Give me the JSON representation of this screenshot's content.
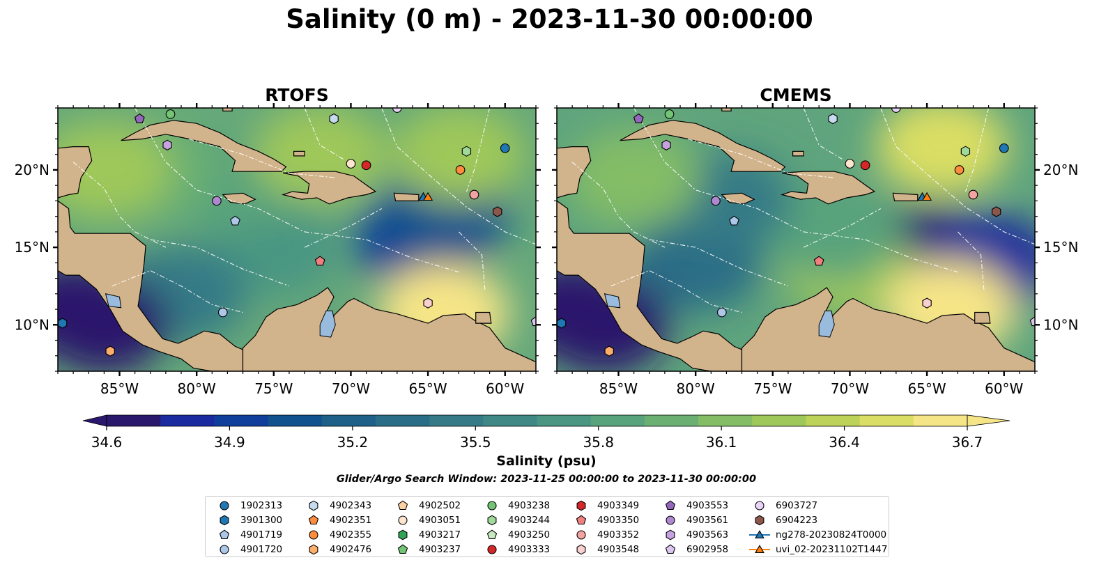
{
  "figure": {
    "title": "Salinity (0 m) - 2023-11-30 00:00:00",
    "search_window": "Glider/Argo Search Window: 2023-11-25 00:00:00 to 2023-11-30 00:00:00"
  },
  "colors": {
    "land": "#d2b48c",
    "lake": "#99bbdd",
    "colormap_haline": [
      "#2a186c",
      "#1b2a9e",
      "#0f3f9a",
      "#10518e",
      "#1e6088",
      "#2a6d86",
      "#357a86",
      "#3f8885",
      "#4a9682",
      "#58a37c",
      "#6bb072",
      "#84bd66",
      "#9fc85a",
      "#bdd258",
      "#dade64",
      "#f6e587"
    ]
  },
  "chart_data": [
    {
      "type": "heatmap",
      "title": "RTOFS",
      "variable": "Salinity (0 m)",
      "units": "psu",
      "x_range": [
        -89,
        -58
      ],
      "y_range": [
        7,
        24
      ],
      "x_ticks": [
        "85°W",
        "80°W",
        "75°W",
        "70°W",
        "65°W",
        "60°W"
      ],
      "y_ticks": [
        "10°N",
        "15°N",
        "20°N"
      ],
      "color_range": [
        34.6,
        36.7
      ],
      "regions": [
        {
          "lon": -65.5,
          "lat": 15.5,
          "value": 34.9
        },
        {
          "lon": -64,
          "lat": 17.2,
          "value": 35.0
        },
        {
          "lon": -75,
          "lat": 15,
          "value": 35.7
        },
        {
          "lon": -81,
          "lat": 12,
          "value": 35.5
        },
        {
          "lon": -78,
          "lat": 19,
          "value": 35.9
        },
        {
          "lon": -83,
          "lat": 20,
          "value": 36.0
        },
        {
          "lon": -86,
          "lat": 20,
          "value": 36.2
        },
        {
          "lon": -72,
          "lat": 21,
          "value": 36.3
        },
        {
          "lon": -63,
          "lat": 21,
          "value": 36.2
        },
        {
          "lon": -64,
          "lat": 10.8,
          "value": 36.7
        },
        {
          "lon": -86,
          "lat": 10,
          "value": 34.5
        },
        {
          "lon": -88,
          "lat": 11,
          "value": 34.5
        }
      ]
    },
    {
      "type": "heatmap",
      "title": "CMEMS",
      "variable": "Salinity (0 m)",
      "units": "psu",
      "x_range": [
        -89,
        -58
      ],
      "y_range": [
        7,
        24
      ],
      "x_ticks": [
        "85°W",
        "80°W",
        "75°W",
        "70°W",
        "65°W",
        "60°W"
      ],
      "y_ticks": [
        "10°N",
        "15°N",
        "20°N"
      ],
      "color_range": [
        34.6,
        36.7
      ],
      "regions": [
        {
          "lon": -64.5,
          "lat": 14.5,
          "value": 34.6
        },
        {
          "lon": -61,
          "lat": 14,
          "value": 34.8
        },
        {
          "lon": -70,
          "lat": 13.5,
          "value": 36.3
        },
        {
          "lon": -71,
          "lat": 16,
          "value": 35.8
        },
        {
          "lon": -80,
          "lat": 14,
          "value": 35.3
        },
        {
          "lon": -78,
          "lat": 18,
          "value": 35.5
        },
        {
          "lon": -84,
          "lat": 19.5,
          "value": 36.1
        },
        {
          "lon": -64,
          "lat": 21.5,
          "value": 36.5
        },
        {
          "lon": -63.5,
          "lat": 11,
          "value": 36.7
        },
        {
          "lon": -86,
          "lat": 10,
          "value": 34.5
        },
        {
          "lon": -88,
          "lat": 11,
          "value": 34.5
        }
      ]
    }
  ],
  "colorbar": {
    "label": "Salinity (psu)",
    "ticks": [
      "34.6",
      "34.9",
      "35.2",
      "35.5",
      "35.8",
      "36.1",
      "36.4",
      "36.7"
    ],
    "tick_values": [
      34.6,
      34.9,
      35.2,
      35.5,
      35.8,
      36.1,
      36.4,
      36.7
    ],
    "extend": "both"
  },
  "platforms": [
    {
      "id": "1902313",
      "marker": "circle",
      "color": "#1f77b4",
      "lon": -60,
      "lat": 21.4
    },
    {
      "id": "3901300",
      "marker": "hexagon",
      "color": "#1f77b4",
      "lon": -88.7,
      "lat": 10.1
    },
    {
      "id": "4901719",
      "marker": "pentagon",
      "color": "#aec7e8",
      "lon": -77.5,
      "lat": 16.7
    },
    {
      "id": "4901720",
      "marker": "circle",
      "color": "#aec7e8",
      "lon": -78.3,
      "lat": 10.8
    },
    {
      "id": "4902343",
      "marker": "hexagon",
      "color": "#c6dbef",
      "lon": -71.1,
      "lat": 23.3
    },
    {
      "id": "4902351",
      "marker": "pentagon",
      "color": "#fd8d3c",
      "lon": -82.5,
      "lat": 24.3
    },
    {
      "id": "4902355",
      "marker": "circle",
      "color": "#fd8d3c",
      "lon": -62.9,
      "lat": 20
    },
    {
      "id": "4902476",
      "marker": "hexagon",
      "color": "#fdae6b",
      "lon": -85.6,
      "lat": 8.3
    },
    {
      "id": "4902502",
      "marker": "pentagon",
      "color": "#fdd0a2",
      "lon": -71.2,
      "lat": 24.3
    },
    {
      "id": "4903051",
      "marker": "circle",
      "color": "#fee6ce",
      "lon": -70,
      "lat": 20.4
    },
    {
      "id": "4903217",
      "marker": "hexagon",
      "color": "#31a354",
      "lon": -79.5,
      "lat": 24.3
    },
    {
      "id": "4903237",
      "marker": "pentagon",
      "color": "#74c476",
      "lon": -77,
      "lat": 24.3
    },
    {
      "id": "4903238",
      "marker": "circle",
      "color": "#74c476",
      "lon": -81.7,
      "lat": 23.6
    },
    {
      "id": "4903244",
      "marker": "hexagon",
      "color": "#a1d99b",
      "lon": -62.5,
      "lat": 21.2
    },
    {
      "id": "4903250",
      "marker": "pentagon",
      "color": "#c7e9c0",
      "lon": -74,
      "lat": 24.3
    },
    {
      "id": "4903333",
      "marker": "circle",
      "color": "#d62728",
      "lon": -69,
      "lat": 20.3
    },
    {
      "id": "4903349",
      "marker": "hexagon",
      "color": "#d62728",
      "lon": -66,
      "lat": 24.3
    },
    {
      "id": "4903350",
      "marker": "pentagon",
      "color": "#f07f7f",
      "lon": -72,
      "lat": 14.1
    },
    {
      "id": "4903352",
      "marker": "circle",
      "color": "#f4a3a3",
      "lon": -62,
      "lat": 18.4
    },
    {
      "id": "4903548",
      "marker": "hexagon",
      "color": "#f9cfcf",
      "lon": -65,
      "lat": 11.4
    },
    {
      "id": "4903553",
      "marker": "pentagon",
      "color": "#9467bd",
      "lon": -83.7,
      "lat": 23.3
    },
    {
      "id": "4903561",
      "marker": "circle",
      "color": "#b088d0",
      "lon": -78.7,
      "lat": 18
    },
    {
      "id": "4903563",
      "marker": "hexagon",
      "color": "#c6a3e0",
      "lon": -81.9,
      "lat": 21.6
    },
    {
      "id": "6902958",
      "marker": "pentagon",
      "color": "#dcc6f0",
      "lon": -58,
      "lat": 10.2
    },
    {
      "id": "6903727",
      "marker": "circle",
      "color": "#e8d4f7",
      "lon": -67,
      "lat": 24
    },
    {
      "id": "6904223",
      "marker": "hexagon",
      "color": "#8c564b",
      "lon": -60.5,
      "lat": 17.3
    },
    {
      "id": "ng278-20230824T0000",
      "marker": "triangle",
      "color": "#1f77b4",
      "line": true,
      "lon": -65.3,
      "lat": 18.2
    },
    {
      "id": "uvi_02-20231102T1447",
      "marker": "triangle",
      "color": "#ff7f0e",
      "line": true,
      "lon": -65,
      "lat": 18.2
    }
  ]
}
